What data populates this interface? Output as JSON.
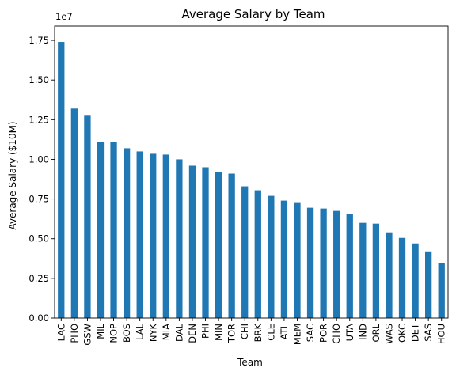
{
  "chart_data": {
    "type": "bar",
    "title": "Average Salary by Team",
    "xlabel": "Team",
    "ylabel": "Average Salary ($10M)",
    "y_offset_label": "1e7",
    "ylim": [
      0,
      18400000
    ],
    "yticks": [
      0,
      2500000,
      5000000,
      7500000,
      10000000,
      12500000,
      15000000,
      17500000
    ],
    "ytick_labels": [
      "0.00",
      "0.25",
      "0.50",
      "0.75",
      "1.00",
      "1.25",
      "1.50",
      "1.75"
    ],
    "grid": false,
    "bar_color": "#1f77b4",
    "categories": [
      "LAC",
      "PHO",
      "GSW",
      "MIL",
      "NOP",
      "BOS",
      "LAL",
      "NYK",
      "MIA",
      "DAL",
      "DEN",
      "PHI",
      "MIN",
      "TOR",
      "CHI",
      "BRK",
      "CLE",
      "ATL",
      "MEM",
      "SAC",
      "POR",
      "CHO",
      "UTA",
      "IND",
      "ORL",
      "WAS",
      "OKC",
      "DET",
      "SAS",
      "HOU"
    ],
    "values": [
      17400000,
      13200000,
      12800000,
      11100000,
      11100000,
      10700000,
      10500000,
      10350000,
      10300000,
      10000000,
      9600000,
      9500000,
      9200000,
      9100000,
      8300000,
      8050000,
      7700000,
      7400000,
      7300000,
      6950000,
      6900000,
      6750000,
      6550000,
      6000000,
      5950000,
      5400000,
      5050000,
      4700000,
      4200000,
      3450000
    ]
  }
}
